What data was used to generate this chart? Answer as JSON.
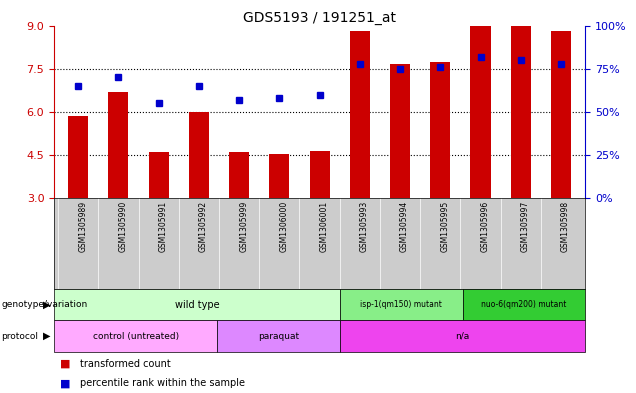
{
  "title": "GDS5193 / 191251_at",
  "samples": [
    "GSM1305989",
    "GSM1305990",
    "GSM1305991",
    "GSM1305992",
    "GSM1305999",
    "GSM1306000",
    "GSM1306001",
    "GSM1305993",
    "GSM1305994",
    "GSM1305995",
    "GSM1305996",
    "GSM1305997",
    "GSM1305998"
  ],
  "transformed_count": [
    5.85,
    6.7,
    4.6,
    6.0,
    4.6,
    4.55,
    4.65,
    8.8,
    7.65,
    7.75,
    9.0,
    9.0,
    8.8
  ],
  "percentile_rank": [
    65,
    70,
    55,
    65,
    57,
    58,
    60,
    78,
    75,
    76,
    82,
    80,
    78
  ],
  "bar_color": "#cc0000",
  "dot_color": "#0000cc",
  "ylim_left": [
    3,
    9
  ],
  "ylim_right": [
    0,
    100
  ],
  "yticks_left": [
    3,
    4.5,
    6,
    7.5,
    9
  ],
  "yticks_right": [
    0,
    25,
    50,
    75,
    100
  ],
  "ytick_labels_right": [
    "0%",
    "25%",
    "50%",
    "75%",
    "100%"
  ],
  "dotted_lines": [
    4.5,
    6.0,
    7.5
  ],
  "geno_ranges": [
    {
      "start": 0,
      "end": 7,
      "label": "wild type",
      "color": "#ccffcc"
    },
    {
      "start": 7,
      "end": 10,
      "label": "isp-1(qm150) mutant",
      "color": "#88ee88"
    },
    {
      "start": 10,
      "end": 13,
      "label": "nuo-6(qm200) mutant",
      "color": "#33cc33"
    }
  ],
  "proto_ranges": [
    {
      "start": 0,
      "end": 4,
      "label": "control (untreated)",
      "color": "#ffaaff"
    },
    {
      "start": 4,
      "end": 7,
      "label": "paraquat",
      "color": "#dd88ff"
    },
    {
      "start": 7,
      "end": 13,
      "label": "n/a",
      "color": "#ee44ee"
    }
  ],
  "background_color": "#ffffff",
  "sample_area_color": "#cccccc",
  "bar_width": 0.5
}
